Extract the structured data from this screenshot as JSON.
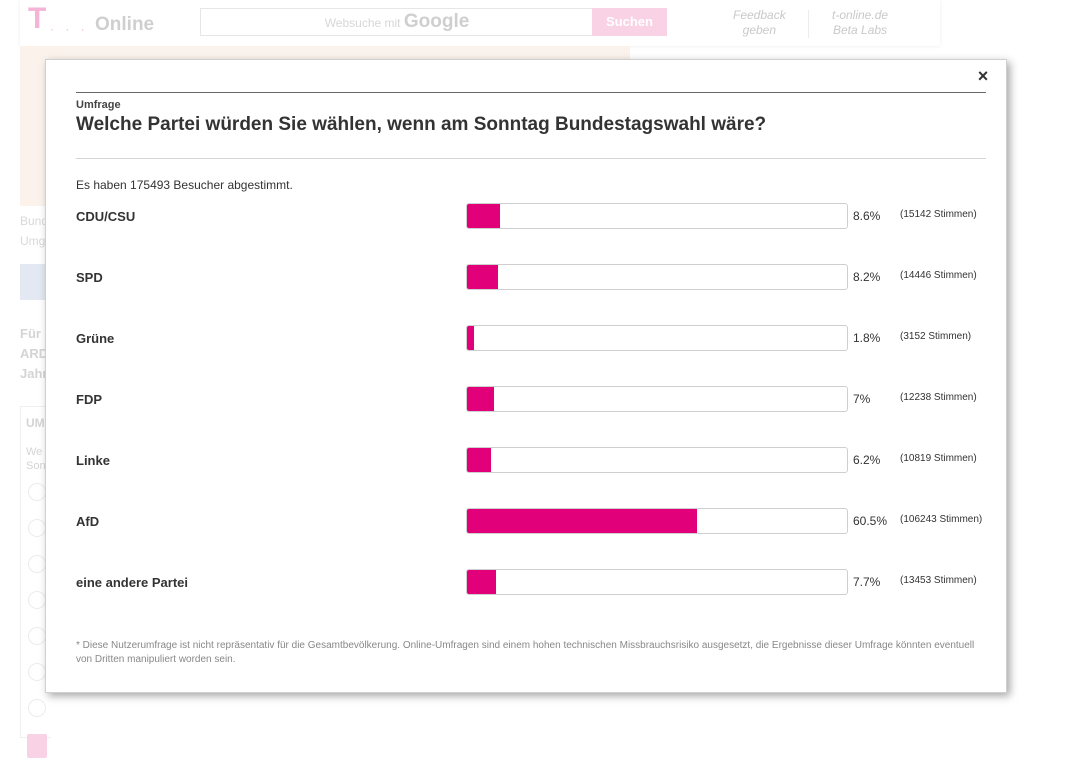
{
  "background": {
    "logo_t": "T",
    "logo_dots": "· · ·",
    "logo_online": "Online",
    "search_placeholder": "Websuche mit",
    "search_brand": "Google",
    "search_button": "Suchen",
    "feedback_line1": "Feedback",
    "feedback_line2": "geben",
    "labs_line1": "t-online.de",
    "labs_line2": "Beta Labs",
    "side_text_1": "Bund",
    "side_text_2": "Umg",
    "bold_1": "Für",
    "bold_2": "ARD",
    "bold_3": "Jahr",
    "box_title": "UM",
    "box_text_1": "We",
    "box_text_2": "Son"
  },
  "modal": {
    "close_label": "×",
    "kicker": "Umfrage",
    "question": "Welche Partei würden Sie wählen, wenn am Sonntag Bundestagswahl wäre?",
    "voters_text": "Es haben 175493 Besucher abgestimmt.",
    "footnote": "* Diese Nutzerumfrage ist nicht repräsentativ für die Gesamtbevölkerung. Online-Umfragen sind einem hohen technischen Missbrauchsrisiko ausgesetzt, die Ergebnisse dieser Umfrage könnten eventuell von Dritten manipuliert worden sein."
  },
  "colors": {
    "accent": "#e2007a",
    "accent_light": "#f9d2e6"
  },
  "chart_data": {
    "type": "bar",
    "orientation": "horizontal",
    "categories": [
      "CDU/CSU",
      "SPD",
      "Grüne",
      "FDP",
      "Linke",
      "AfD",
      "eine andere Partei"
    ],
    "values": [
      8.6,
      8.2,
      1.8,
      7,
      6.2,
      60.5,
      7.7
    ],
    "value_labels": [
      "8.6%",
      "8.2%",
      "1.8%",
      "7%",
      "6.2%",
      "60.5%",
      "7.7%"
    ],
    "votes": [
      15142,
      14446,
      3152,
      12238,
      10819,
      106243,
      13453
    ],
    "vote_labels": [
      "(15142 Stimmen)",
      "(14446 Stimmen)",
      "(3152 Stimmen)",
      "(12238 Stimmen)",
      "(10819 Stimmen)",
      "(106243 Stimmen)",
      "(13453 Stimmen)"
    ],
    "xlim": [
      0,
      100
    ],
    "grid": false
  }
}
